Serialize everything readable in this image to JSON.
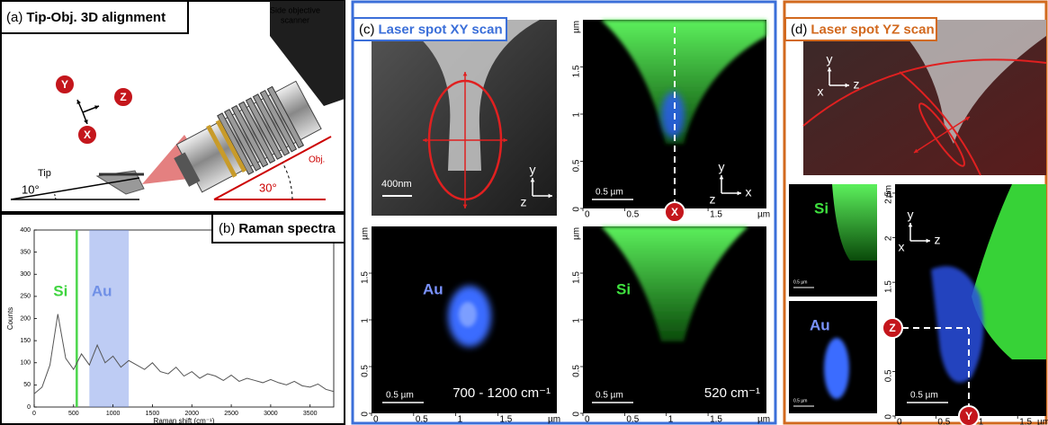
{
  "panel_a": {
    "label": "(a)",
    "title": "Tip-Obj. 3D alignment",
    "scanner": [
      "Side objective",
      "scanner"
    ],
    "axes": {
      "y": "Y",
      "z": "Z",
      "x": "X"
    },
    "tip": "Tip",
    "tip_angle": "10°",
    "objective": "Obj.",
    "objective_angle": "30°"
  },
  "panel_b": {
    "label": "(b)",
    "title": "Raman spectra",
    "chart": {
      "type": "line",
      "xlabel": "Raman shift (cm⁻¹)",
      "ylabel": "Counts",
      "x": [
        0,
        100,
        200,
        300,
        400,
        500,
        600,
        700,
        800,
        900,
        1000,
        1100,
        1200,
        1300,
        1400,
        1500,
        1600,
        1700,
        1800,
        1900,
        2000,
        2100,
        2200,
        2300,
        2400,
        2500,
        2600,
        2700,
        2800,
        2900,
        3000,
        3100,
        3200,
        3300,
        3400,
        3500,
        3600,
        3700,
        3800
      ],
      "values": [
        30,
        45,
        95,
        210,
        110,
        85,
        120,
        95,
        140,
        100,
        115,
        90,
        105,
        95,
        85,
        100,
        80,
        75,
        90,
        70,
        80,
        65,
        75,
        70,
        60,
        72,
        58,
        65,
        60,
        55,
        62,
        55,
        50,
        58,
        48,
        45,
        52,
        40,
        35
      ],
      "color": "#555555",
      "xlim": [
        0,
        3800
      ],
      "ylim": [
        0,
        400
      ],
      "xticks": [
        0,
        500,
        1000,
        1500,
        2000,
        2500,
        3000,
        3500
      ],
      "yticks": [
        0,
        50,
        100,
        150,
        200,
        250,
        300,
        350,
        400
      ],
      "bands": [
        {
          "name": "Si",
          "color": "#3fd43f",
          "range": [
            525,
            555
          ]
        },
        {
          "name": "Au",
          "color": "#6f8fe6",
          "range": [
            700,
            1200
          ]
        }
      ]
    }
  },
  "panel_c": {
    "label": "(c)",
    "title": "Laser spot XY scan",
    "sem_scale": "400nm",
    "frame": [
      "y",
      "z",
      "x"
    ],
    "map_axis": {
      "xlim": [
        0,
        2.2
      ],
      "ylim": [
        0,
        2
      ],
      "xticks": [
        0,
        0.5,
        1,
        1.5
      ],
      "yticks": [
        0,
        0.5,
        1,
        1.5
      ],
      "unit": "µm"
    },
    "scale_bar": "0.5 µm",
    "maps": [
      {
        "frame": [
          "y",
          "z",
          "x"
        ],
        "marker": "X"
      },
      {
        "element": "Au",
        "band": "700 - 1200 cm⁻¹"
      },
      {
        "element": "Si",
        "band": "520 cm⁻¹"
      }
    ]
  },
  "panel_d": {
    "label": "(d)",
    "title": "Laser spot YZ scan",
    "frame": [
      "y",
      "x",
      "z"
    ],
    "maps": [
      {
        "element": "Si",
        "scale_bar": "0.5 µm"
      },
      {
        "element": "Au",
        "scale_bar": "0.5 µm"
      }
    ],
    "main_map": {
      "frame": [
        "y",
        "x",
        "z"
      ],
      "markers": [
        "Z",
        "Y"
      ],
      "scale_bar": "0.5 µm",
      "xlim": [
        0,
        1.85
      ],
      "ylim": [
        0,
        2.6
      ],
      "xticks": [
        0,
        0.5,
        1,
        1.5
      ],
      "yticks": [
        0,
        0.5,
        1,
        1.5,
        2,
        2.5
      ],
      "unit": "µm"
    }
  }
}
